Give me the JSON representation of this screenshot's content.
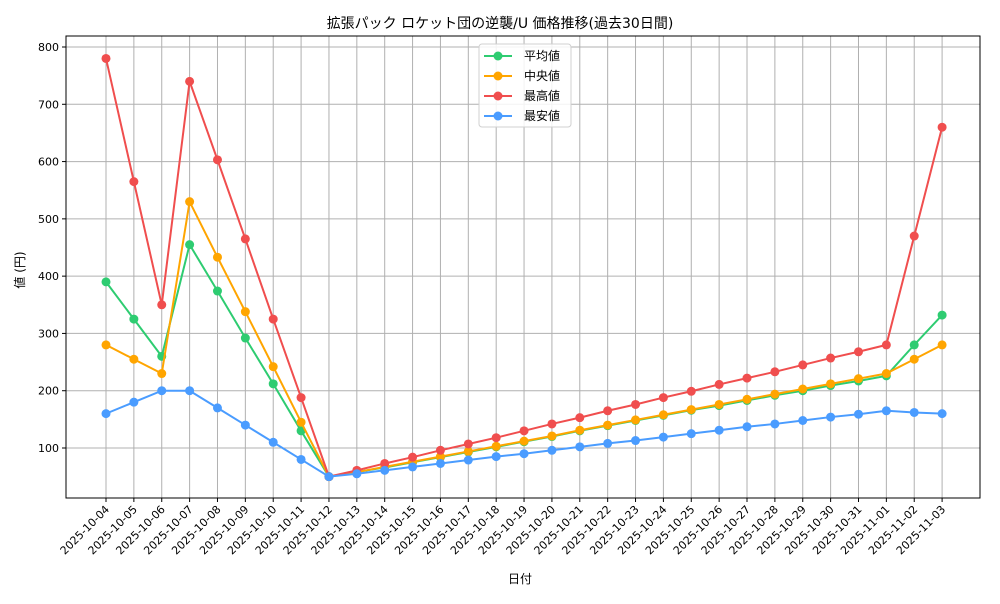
{
  "chart_data": {
    "type": "line",
    "title": "拡張パック ロケット団の逆襲/U 価格推移(過去30日間)",
    "xlabel": "日付",
    "ylabel": "値 (円)",
    "ylim": [
      12,
      820
    ],
    "yticks": [
      100,
      200,
      300,
      400,
      500,
      600,
      700,
      800
    ],
    "grid": true,
    "legend_position": "upper center",
    "categories": [
      "2025-10-04",
      "2025-10-05",
      "2025-10-06",
      "2025-10-07",
      "2025-10-08",
      "2025-10-09",
      "2025-10-10",
      "2025-10-11",
      "2025-10-12",
      "2025-10-13",
      "2025-10-14",
      "2025-10-15",
      "2025-10-16",
      "2025-10-17",
      "2025-10-18",
      "2025-10-19",
      "2025-10-20",
      "2025-10-21",
      "2025-10-22",
      "2025-10-23",
      "2025-10-24",
      "2025-10-25",
      "2025-10-26",
      "2025-10-27",
      "2025-10-28",
      "2025-10-29",
      "2025-10-30",
      "2025-10-31",
      "2025-11-01",
      "2025-11-02",
      "2025-11-03"
    ],
    "series": [
      {
        "name": "平均値",
        "color": "#2ecc71",
        "values": [
          390,
          325,
          260,
          455,
          374,
          292,
          212,
          130,
          50,
          58,
          66,
          75,
          84,
          93,
          102,
          111,
          120,
          130,
          139,
          148,
          157,
          166,
          174,
          183,
          192,
          200,
          209,
          217,
          226,
          280,
          332
        ]
      },
      {
        "name": "中央値",
        "color": "#ffa500",
        "values": [
          280,
          255,
          230,
          530,
          433,
          338,
          242,
          145,
          50,
          58,
          67,
          76,
          85,
          94,
          103,
          112,
          121,
          131,
          140,
          149,
          158,
          167,
          176,
          185,
          194,
          203,
          212,
          221,
          230,
          255,
          280
        ]
      },
      {
        "name": "最高値",
        "color": "#f04e4e",
        "values": [
          780,
          565,
          350,
          740,
          603,
          465,
          325,
          188,
          50,
          61,
          73,
          84,
          96,
          107,
          118,
          130,
          142,
          153,
          165,
          176,
          188,
          199,
          211,
          222,
          233,
          245,
          257,
          268,
          280,
          470,
          660
        ]
      },
      {
        "name": "最安値",
        "color": "#4a9cff",
        "values": [
          160,
          180,
          200,
          200,
          170,
          140,
          110,
          80,
          50,
          55,
          61,
          67,
          73,
          79,
          85,
          90,
          96,
          102,
          108,
          113,
          119,
          125,
          131,
          137,
          142,
          148,
          154,
          159,
          165,
          162,
          160
        ]
      }
    ]
  }
}
